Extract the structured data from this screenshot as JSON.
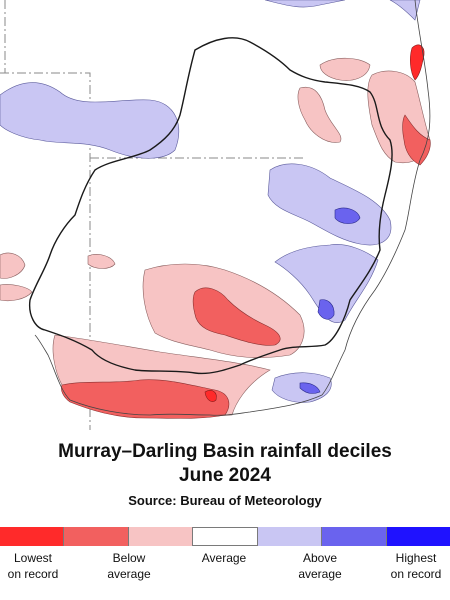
{
  "map": {
    "title_line1": "Murray–Darling Basin rainfall deciles",
    "title_line2": "June 2024",
    "source": "Source: Bureau of Meteorology",
    "colors": {
      "highest": "#1f12ff",
      "very_much_above": "#6a63ee",
      "above": "#c9c6f3",
      "average": "#ffffff",
      "below": "#f7c4c4",
      "very_much_below": "#f2605f",
      "lowest": "#ff2a2a",
      "outline": "#222222",
      "state_border": "#8a8a8a"
    }
  },
  "legend": {
    "categories": [
      {
        "key": "lowest",
        "color": "#ff2a2a"
      },
      {
        "key": "very_much_below",
        "color": "#f2605f"
      },
      {
        "key": "below",
        "color": "#f7c4c4"
      },
      {
        "key": "average",
        "color": "#ffffff"
      },
      {
        "key": "above",
        "color": "#c9c6f3"
      },
      {
        "key": "very_much_above",
        "color": "#6a63ee"
      },
      {
        "key": "highest",
        "color": "#1f12ff"
      }
    ],
    "labels": [
      {
        "line1": "Lowest",
        "line2": "on record"
      },
      {
        "line1": "Below",
        "line2": "average"
      },
      {
        "line1": "Average",
        "line2": ""
      },
      {
        "line1": "Above",
        "line2": "average"
      },
      {
        "line1": "Highest",
        "line2": "on record"
      }
    ]
  }
}
